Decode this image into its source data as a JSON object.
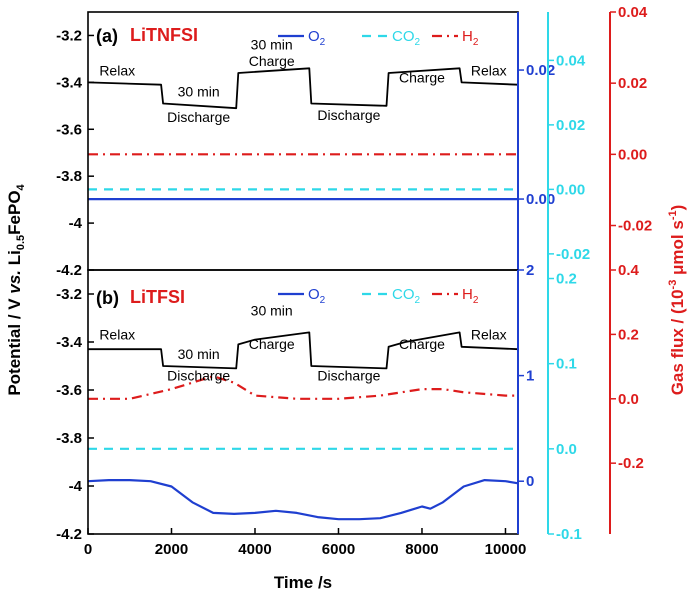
{
  "chart_data": [
    {
      "type": "line",
      "panel_label": "(a)",
      "electrolyte": "LiTNFSI",
      "xlim": [
        0,
        10300
      ],
      "left_axis": {
        "ylim": [
          -4.2,
          -3.1
        ],
        "ticks": [
          -3.2,
          -3.4,
          -3.6,
          -3.8,
          -4.0,
          -4.2
        ]
      },
      "right_axes": {
        "O2": {
          "color": "#1f3fd0",
          "ylim": [
            -0.011,
            0.029
          ],
          "ticks": [
            0.02,
            0.0
          ]
        },
        "CO2": {
          "color": "#2ed8e8",
          "ylim": [
            -0.025,
            0.055
          ],
          "ticks": [
            0.04,
            0.02,
            0.0,
            -0.02
          ]
        },
        "H2": {
          "color": "#dd1c1c",
          "ylim": [
            -0.0325,
            0.04
          ],
          "ticks": [
            0.04,
            0.02,
            0.0,
            -0.02
          ]
        }
      },
      "legend": [
        "O",
        "2",
        "CO",
        "2",
        "H",
        "2"
      ],
      "series": [
        {
          "name": "Potential",
          "axis": "left",
          "color": "#000000",
          "x": [
            0,
            1750,
            1800,
            3550,
            3600,
            5300,
            5350,
            7150,
            7200,
            8900,
            8950,
            10300
          ],
          "y": [
            -3.4,
            -3.41,
            -3.49,
            -3.51,
            -3.36,
            -3.34,
            -3.49,
            -3.5,
            -3.36,
            -3.34,
            -3.4,
            -3.41
          ]
        },
        {
          "name": "O2",
          "axis": "O2",
          "color": "#1f3fd0",
          "dash": "solid",
          "x": [
            0,
            10300
          ],
          "y": [
            0.0,
            0.0
          ]
        },
        {
          "name": "CO2",
          "axis": "CO2",
          "color": "#2ed8e8",
          "dash": "dash",
          "x": [
            0,
            10300
          ],
          "y": [
            0.0,
            0.0
          ]
        },
        {
          "name": "H2",
          "axis": "H2",
          "color": "#dd1c1c",
          "dash": "dashdot",
          "x": [
            0,
            10300
          ],
          "y": [
            0.0,
            0.0
          ]
        }
      ],
      "annotations": [
        {
          "text": "Relax",
          "x": 700,
          "y": -3.37
        },
        {
          "text": "30 min",
          "x": 2650,
          "y": -3.46
        },
        {
          "text": "Discharge",
          "x": 2650,
          "y": -3.57
        },
        {
          "text": "30 min",
          "x": 4400,
          "y": -3.26
        },
        {
          "text": "Charge",
          "x": 4400,
          "y": -3.33
        },
        {
          "text": "Discharge",
          "x": 6250,
          "y": -3.56
        },
        {
          "text": "Charge",
          "x": 8000,
          "y": -3.4
        },
        {
          "text": "Relax",
          "x": 9600,
          "y": -3.37
        }
      ]
    },
    {
      "type": "line",
      "panel_label": "(b)",
      "electrolyte": "LiTFSI",
      "xlim": [
        0,
        10300
      ],
      "xticks": [
        0,
        2000,
        4000,
        6000,
        8000,
        10000
      ],
      "xlabel": "Time /s",
      "left_axis": {
        "ylim": [
          -4.2,
          -3.1
        ],
        "ticks": [
          -3.2,
          -3.4,
          -3.6,
          -3.8,
          -4.0,
          -4.2
        ]
      },
      "right_axes": {
        "O2": {
          "color": "#1f3fd0",
          "ylim": [
            -0.5,
            2.0
          ],
          "ticks": [
            2,
            1,
            0
          ]
        },
        "CO2": {
          "color": "#2ed8e8",
          "ylim": [
            -0.1,
            0.21
          ],
          "ticks": [
            0.2,
            0.1,
            0.0,
            -0.1
          ]
        },
        "H2": {
          "color": "#dd1c1c",
          "ylim": [
            -0.42,
            0.4
          ],
          "ticks": [
            0.4,
            0.2,
            0.0,
            -0.2
          ]
        }
      },
      "legend": [
        "O",
        "2",
        "CO",
        "2",
        "H",
        "2"
      ],
      "series": [
        {
          "name": "Potential",
          "axis": "left",
          "color": "#000000",
          "x": [
            0,
            1750,
            1800,
            3550,
            3600,
            4000,
            5300,
            5350,
            7150,
            7200,
            7600,
            8900,
            8950,
            10300
          ],
          "y": [
            -3.43,
            -3.43,
            -3.5,
            -3.51,
            -3.41,
            -3.39,
            -3.36,
            -3.5,
            -3.51,
            -3.42,
            -3.4,
            -3.36,
            -3.42,
            -3.43
          ]
        },
        {
          "name": "O2",
          "axis": "O2",
          "color": "#1f3fd0",
          "dash": "solid",
          "x": [
            0,
            500,
            1000,
            1500,
            2000,
            2500,
            3000,
            3500,
            4000,
            4500,
            5000,
            5500,
            6000,
            6500,
            7000,
            7500,
            8000,
            8200,
            8500,
            9000,
            9500,
            10000,
            10300
          ],
          "y": [
            0.0,
            0.01,
            0.01,
            0.0,
            -0.05,
            -0.2,
            -0.3,
            -0.31,
            -0.3,
            -0.28,
            -0.3,
            -0.34,
            -0.36,
            -0.36,
            -0.35,
            -0.3,
            -0.24,
            -0.26,
            -0.2,
            -0.05,
            0.01,
            0.0,
            -0.02
          ]
        },
        {
          "name": "CO2",
          "axis": "CO2",
          "color": "#2ed8e8",
          "dash": "dash",
          "x": [
            0,
            10300
          ],
          "y": [
            0.0,
            0.0
          ]
        },
        {
          "name": "H2",
          "axis": "H2",
          "color": "#dd1c1c",
          "dash": "dashdot",
          "x": [
            0,
            1000,
            2000,
            3000,
            3500,
            4000,
            5000,
            6000,
            7000,
            8000,
            8500,
            9000,
            10000,
            10300
          ],
          "y": [
            0.0,
            0.0,
            0.03,
            0.07,
            0.05,
            0.01,
            0.0,
            0.0,
            0.01,
            0.03,
            0.03,
            0.02,
            0.01,
            0.01
          ]
        }
      ],
      "annotations": [
        {
          "text": "Relax",
          "x": 700,
          "y": -3.39
        },
        {
          "text": "30 min",
          "x": 2650,
          "y": -3.47
        },
        {
          "text": "Discharge",
          "x": 2650,
          "y": -3.56
        },
        {
          "text": "30 min",
          "x": 4400,
          "y": -3.29
        },
        {
          "text": "Charge",
          "x": 4400,
          "y": -3.43
        },
        {
          "text": "Discharge",
          "x": 6250,
          "y": -3.56
        },
        {
          "text": "Charge",
          "x": 8000,
          "y": -3.43
        },
        {
          "text": "Relax",
          "x": 9600,
          "y": -3.39
        }
      ]
    }
  ],
  "shared": {
    "left_ylabel_main": "Potential / V ",
    "left_ylabel_vs": "vs.",
    "left_ylabel_li": " Li",
    "left_ylabel_sub1": "0.5",
    "left_ylabel_fe": "FePO",
    "left_ylabel_sub2": "4",
    "right_ylabel_main": "Gas flux / (10",
    "right_ylabel_sup": "-3",
    "right_ylabel_unit": " μmol s",
    "right_ylabel_sup2": "-1",
    "right_ylabel_close": ")"
  }
}
